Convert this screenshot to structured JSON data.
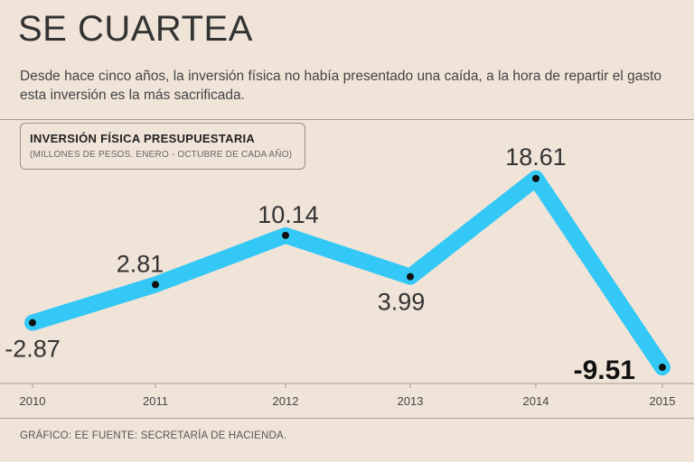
{
  "header": {
    "title": "SE CUARTEA",
    "subtitle": "Desde hace cinco años, la inversión física no había presentado una caída, a la hora de repartir el gasto esta inversión es la más sacrificada."
  },
  "legend": {
    "title": "INVERSIÓN FÍSICA PRESUPUESTARIA",
    "subtitle": "(MILLONES DE PESOS. ENERO - OCTUBRE DE CADA AÑO)"
  },
  "source": "GRÁFICO: EE  FUENTE: SECRETARÍA DE HACIENDA.",
  "colors": {
    "line": "#33c8f5",
    "point": "#111111",
    "background": "#f0e4d9",
    "text": "#333333"
  },
  "chart_data": {
    "type": "line",
    "categories": [
      "2010",
      "2011",
      "2012",
      "2013",
      "2014",
      "2015"
    ],
    "series": [
      {
        "values": [
          -2.87,
          2.81,
          10.14,
          3.99,
          18.61,
          -9.51
        ],
        "labels": [
          "-2.87",
          "2.81",
          "10.14",
          "3.99",
          "18.61",
          "-9.51"
        ]
      }
    ],
    "title": "INVERSIÓN FÍSICA PRESUPUESTARIA",
    "ylabel": "",
    "xlabel": "",
    "grid": false,
    "emphasized_label_index": 5
  }
}
